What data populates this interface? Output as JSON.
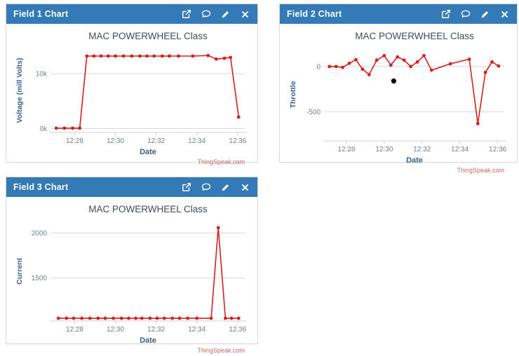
{
  "colors": {
    "header_bg": "#337ab7",
    "header_text": "#ffffff",
    "panel_border": "#d9d9d9",
    "line_red": "#d62020",
    "marker_red": "#d62020",
    "outlier_black": "#000000",
    "grid": "#d8d8d8",
    "axis_line": "#ccd1d8",
    "tick_label": "#72808d",
    "axis_title": "#39608a",
    "chart_title": "#404d56",
    "credit": "#c86a6a"
  },
  "panels": [
    {
      "title": "Field 1 Chart",
      "icons": [
        "external-link",
        "comment",
        "edit",
        "close"
      ]
    },
    {
      "title": "Field 2 Chart",
      "icons": [
        "external-link",
        "comment",
        "edit",
        "close"
      ]
    },
    {
      "title": "Field 3 Chart",
      "icons": [
        "external-link",
        "comment",
        "edit",
        "close"
      ]
    }
  ],
  "chart_data": [
    {
      "type": "line",
      "title": "MAC POWERWHEEL Class",
      "xlabel": "Date",
      "ylabel": "Voltage (mill Volts)",
      "credit": "ThingSpeak.com",
      "x_unit": "minutes after 12:00",
      "xlim": [
        26.85,
        36.35
      ],
      "ylim": [
        -700,
        14600
      ],
      "x_ticks": [
        {
          "v": 28,
          "label": "12:28"
        },
        {
          "v": 30,
          "label": "12:30"
        },
        {
          "v": 32,
          "label": "12:32"
        },
        {
          "v": 34,
          "label": "12:34"
        },
        {
          "v": 36,
          "label": "12:36"
        }
      ],
      "y_ticks": [
        {
          "v": 0,
          "label": "0k"
        },
        {
          "v": 10000,
          "label": "10k"
        }
      ],
      "points": [
        [
          27.1,
          80
        ],
        [
          27.5,
          80
        ],
        [
          27.9,
          80
        ],
        [
          28.25,
          80
        ],
        [
          28.6,
          13200
        ],
        [
          28.95,
          13200
        ],
        [
          29.3,
          13200
        ],
        [
          29.65,
          13200
        ],
        [
          30.0,
          13200
        ],
        [
          30.4,
          13200
        ],
        [
          30.8,
          13200
        ],
        [
          31.2,
          13200
        ],
        [
          31.55,
          13200
        ],
        [
          31.9,
          13200
        ],
        [
          32.3,
          13200
        ],
        [
          32.65,
          13200
        ],
        [
          33.1,
          13200
        ],
        [
          33.8,
          13200
        ],
        [
          34.55,
          13300
        ],
        [
          34.95,
          12650
        ],
        [
          35.35,
          12800
        ],
        [
          35.65,
          12950
        ],
        [
          36.05,
          2100
        ]
      ],
      "extra_points": []
    },
    {
      "type": "line",
      "title": "MAC POWERWHEEL Class",
      "xlabel": "Date",
      "ylabel": "Throttle",
      "credit": "ThingSpeak.com",
      "x_unit": "minutes after 12:00",
      "xlim": [
        26.85,
        36.35
      ],
      "ylim": [
        -820,
        200
      ],
      "x_ticks": [
        {
          "v": 28,
          "label": "12:28"
        },
        {
          "v": 30,
          "label": "12:30"
        },
        {
          "v": 32,
          "label": "12:32"
        },
        {
          "v": 34,
          "label": "12:34"
        },
        {
          "v": 36,
          "label": "12:36"
        }
      ],
      "y_ticks": [
        {
          "v": 0,
          "label": "0"
        },
        {
          "v": -500,
          "label": "-500"
        }
      ],
      "points": [
        [
          27.1,
          0
        ],
        [
          27.45,
          0
        ],
        [
          27.8,
          -10
        ],
        [
          28.15,
          35
        ],
        [
          28.5,
          75
        ],
        [
          28.85,
          -30
        ],
        [
          29.2,
          -90
        ],
        [
          29.6,
          70
        ],
        [
          30.0,
          120
        ],
        [
          30.35,
          15
        ],
        [
          30.7,
          105
        ],
        [
          31.05,
          70
        ],
        [
          31.4,
          0
        ],
        [
          31.75,
          50
        ],
        [
          32.1,
          120
        ],
        [
          32.5,
          -40
        ],
        [
          33.5,
          30
        ],
        [
          34.5,
          80
        ],
        [
          34.95,
          -630
        ],
        [
          35.35,
          -65
        ],
        [
          35.7,
          50
        ],
        [
          36.05,
          5
        ]
      ],
      "extra_points": [
        {
          "x": 30.5,
          "y": -160,
          "color": "#000000"
        }
      ]
    },
    {
      "type": "line",
      "title": "MAC POWERWHEEL Class",
      "xlabel": "Date",
      "ylabel": "Current",
      "credit": "ThingSpeak.com",
      "x_unit": "minutes after 12:00",
      "xlim": [
        26.85,
        36.35
      ],
      "ylim": [
        1020,
        2130
      ],
      "x_ticks": [
        {
          "v": 28,
          "label": "12:28"
        },
        {
          "v": 30,
          "label": "12:30"
        },
        {
          "v": 32,
          "label": "12:32"
        },
        {
          "v": 34,
          "label": "12:34"
        },
        {
          "v": 36,
          "label": "12:36"
        }
      ],
      "y_ticks": [
        {
          "v": 1500,
          "label": "1500"
        },
        {
          "v": 2000,
          "label": "2000"
        }
      ],
      "points": [
        [
          27.2,
          1050
        ],
        [
          27.6,
          1050
        ],
        [
          27.95,
          1050
        ],
        [
          28.35,
          1050
        ],
        [
          28.75,
          1050
        ],
        [
          29.15,
          1050
        ],
        [
          29.5,
          1050
        ],
        [
          29.9,
          1050
        ],
        [
          30.3,
          1050
        ],
        [
          30.65,
          1050
        ],
        [
          31.0,
          1050
        ],
        [
          31.3,
          1050
        ],
        [
          31.7,
          1050
        ],
        [
          32.05,
          1050
        ],
        [
          32.4,
          1050
        ],
        [
          32.8,
          1050
        ],
        [
          33.15,
          1050
        ],
        [
          33.55,
          1050
        ],
        [
          34.0,
          1050
        ],
        [
          34.7,
          1050
        ],
        [
          35.05,
          2060
        ],
        [
          35.4,
          1050
        ],
        [
          35.7,
          1050
        ],
        [
          36.05,
          1050
        ]
      ],
      "extra_points": []
    }
  ]
}
